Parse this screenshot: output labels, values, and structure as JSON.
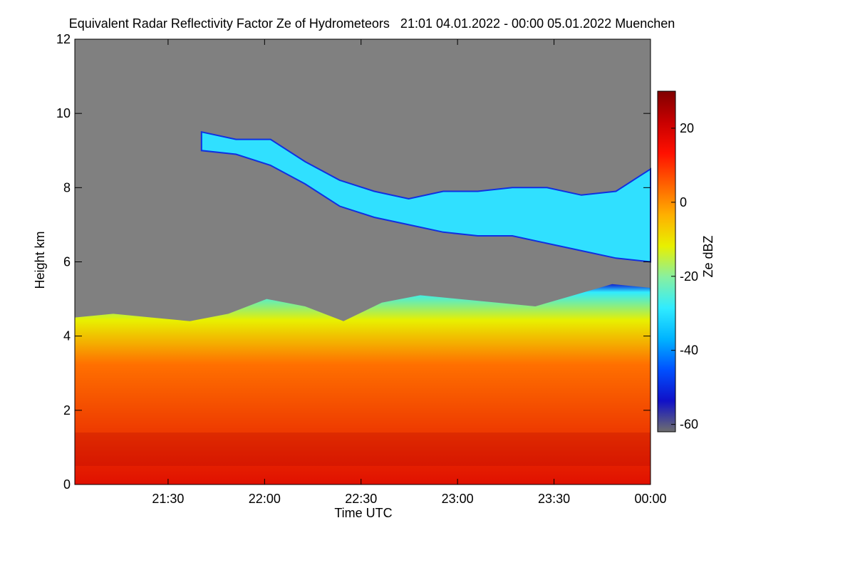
{
  "chart_data": {
    "type": "heatmap",
    "title": "Equivalent Radar Reflectivity Factor Ze of Hydrometeors   21:01 04.01.2022 - 00:00 05.01.2022 Muenchen",
    "xlabel": "Time UTC",
    "ylabel": "Height km",
    "x_range": [
      "21:01",
      "00:00"
    ],
    "ylim": [
      0,
      12
    ],
    "x_ticks": [
      "21:30",
      "22:00",
      "22:30",
      "23:00",
      "23:30",
      "00:00"
    ],
    "y_ticks": [
      0,
      2,
      4,
      6,
      8,
      10,
      12
    ],
    "colorbar": {
      "label": "Ze dBZ",
      "range": [
        -62,
        30
      ],
      "ticks": [
        20,
        0,
        -20,
        -40,
        -60
      ],
      "colors": [
        "#6e6e6e",
        "#1010c8",
        "#0050ff",
        "#00b4ff",
        "#30ecff",
        "#88f0a0",
        "#e8f000",
        "#ffb000",
        "#ff6000",
        "#ff1000",
        "#c80000",
        "#800000"
      ]
    },
    "no_signal_color": "#808080",
    "features": {
      "cloud_top_km": [
        4.5,
        4.6,
        4.5,
        4.4,
        4.6,
        5.0,
        4.8,
        4.4,
        4.9,
        5.1,
        5.0,
        4.9,
        4.8,
        5.1,
        5.4,
        5.3
      ],
      "cirrus_top_km": [
        9.5,
        9.3,
        9.3,
        8.7,
        8.2,
        7.9,
        7.7,
        7.9,
        7.9,
        8.0,
        8.0,
        7.8,
        7.9,
        8.5
      ],
      "cirrus_base_km": [
        9.0,
        8.9,
        8.6,
        8.1,
        7.5,
        7.2,
        7.0,
        6.8,
        6.7,
        6.7,
        6.5,
        6.3,
        6.1,
        6.0
      ],
      "melting_layer_km": [
        1.4,
        0.5
      ]
    }
  }
}
